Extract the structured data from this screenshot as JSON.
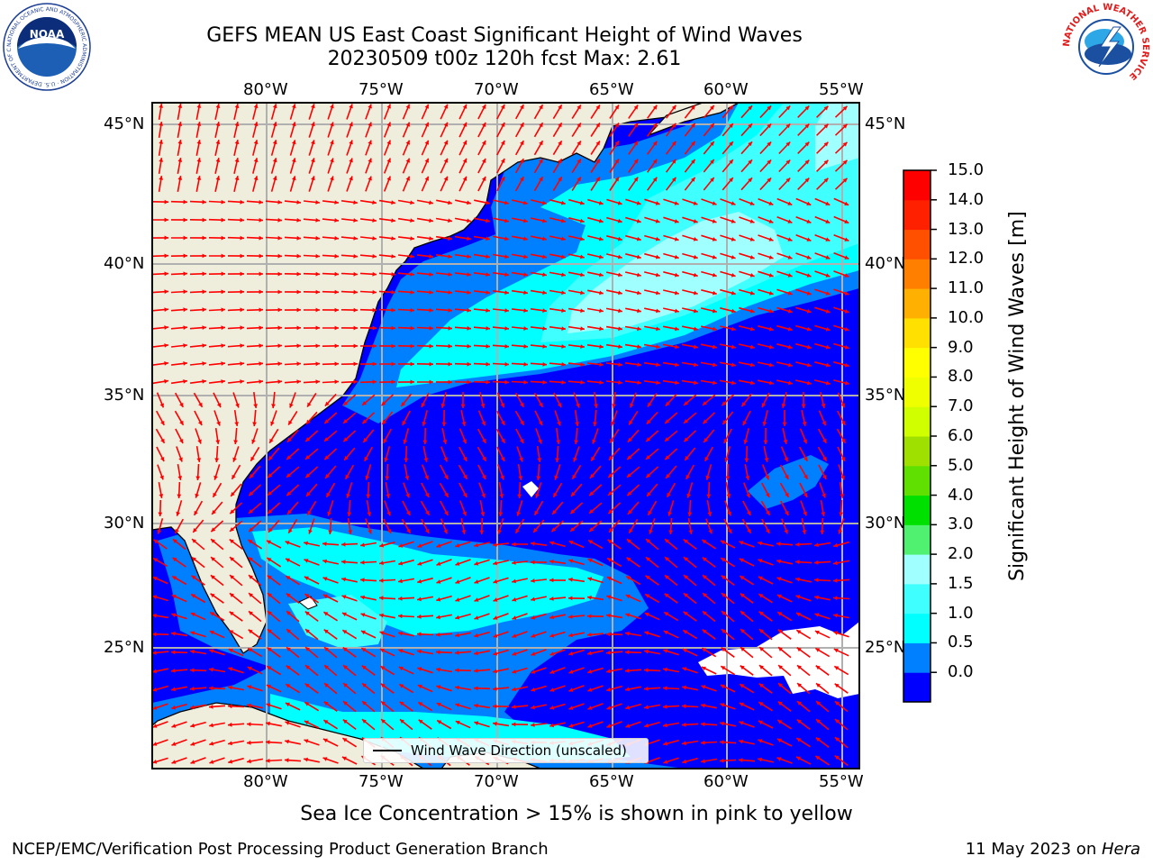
{
  "title_line1": "GEFS MEAN US East Coast Significant Height of Wind Waves",
  "title_line2": "20230509 t00z 120h fcst   Max: 2.61",
  "lon_ticks": [
    "80°W",
    "75°W",
    "70°W",
    "65°W",
    "60°W",
    "55°W"
  ],
  "lat_ticks": [
    "45°N",
    "40°N",
    "35°N",
    "30°N",
    "25°N"
  ],
  "colorbar": {
    "label": "Significant Height of Wind Waves [m]",
    "ticks": [
      "15.0",
      "14.0",
      "13.0",
      "12.0",
      "11.0",
      "10.0",
      "9.0",
      "8.0",
      "7.0",
      "6.0",
      "5.0",
      "4.0",
      "3.0",
      "2.0",
      "1.5",
      "1.0",
      "0.5",
      "0.0"
    ],
    "colors": [
      "#0000ff",
      "#0080ff",
      "#00ffff",
      "#40ffff",
      "#a0ffff",
      "#50f070",
      "#00e000",
      "#60e000",
      "#a0e000",
      "#d0ff00",
      "#f0ff00",
      "#ffff00",
      "#ffe000",
      "#ffb000",
      "#ff8000",
      "#ff5000",
      "#ff2000",
      "#ff0000"
    ]
  },
  "legend_text": "Wind Wave Direction (unscaled)",
  "note": "Sea Ice Concentration > 15% is shown in pink to yellow",
  "footer_left": "NCEP/EMC/Verification Post Processing Product Generation Branch",
  "footer_right_prefix": "11 May 2023 on ",
  "footer_right_machine": "Hera",
  "logo_noaa_text": "NOAA",
  "logo_noaa_ring": "NATIONAL OCEANIC AND ATMOSPHERIC ADMINISTRATION · U.S. DEPARTMENT OF COMMERCE",
  "logo_nws_ring": "NATIONAL WEATHER SERVICE",
  "colors": {
    "land": "#efeddc",
    "grid": "#b0b0b0",
    "arrow": "#ff0000",
    "wave_0": "#0000ff",
    "wave_05": "#0080ff",
    "wave_1": "#00ffff",
    "wave_15": "#40ffff",
    "wave_2": "#a0ffff"
  }
}
